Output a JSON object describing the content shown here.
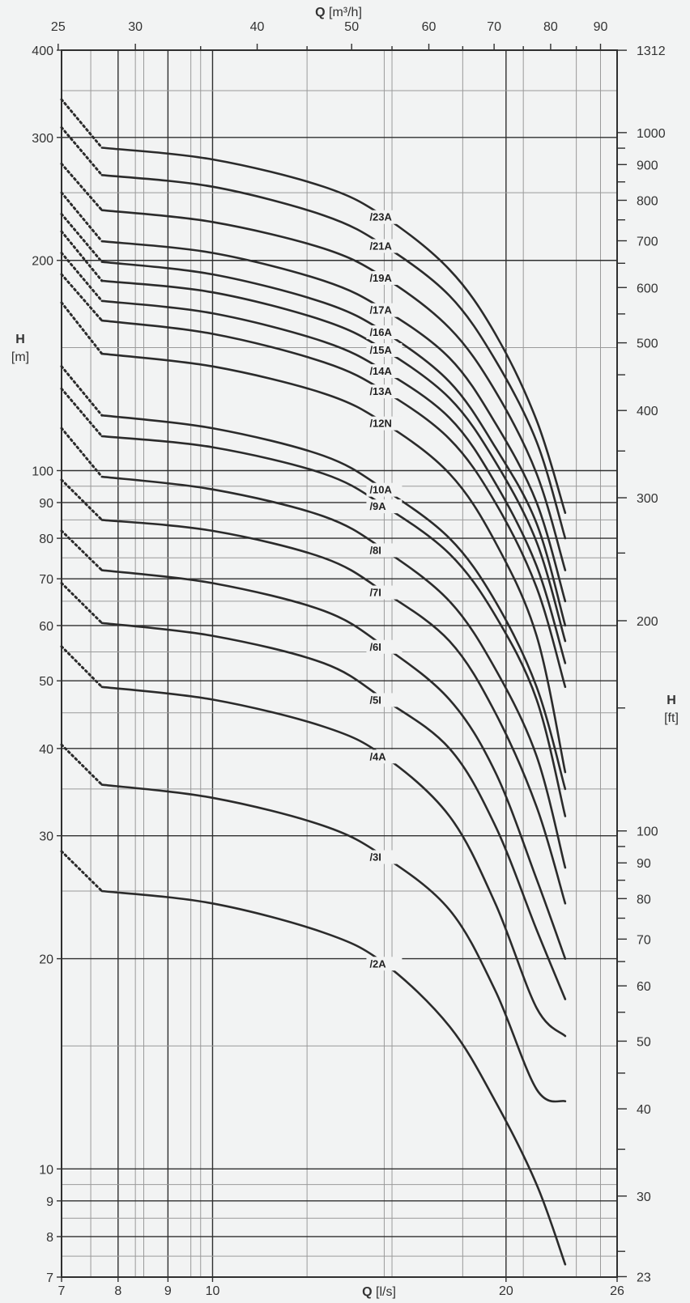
{
  "chart_data": {
    "type": "line",
    "x_scale": "log",
    "y_scale": "log",
    "xlim": [
      7,
      26
    ],
    "ylim": [
      7,
      400
    ],
    "top_axis": {
      "label_bold": "Q",
      "label_unit": "[m³/h]",
      "ticks": [
        "25",
        "30",
        "40",
        "50",
        "60",
        "70",
        "80",
        "90"
      ]
    },
    "bottom_axis": {
      "label_bold": "Q",
      "label_unit": "[l/s]",
      "ticks": [
        "7",
        "8",
        "9",
        "10",
        "20",
        "26"
      ]
    },
    "left_axis": {
      "label_bold": "H",
      "label_unit": "[m]",
      "ticks": [
        "7",
        "8",
        "9",
        "10",
        "20",
        "30",
        "40",
        "50",
        "60",
        "70",
        "80",
        "90",
        "100",
        "200",
        "300",
        "400"
      ]
    },
    "right_axis": {
      "label_bold": "H",
      "label_unit": "[ft]",
      "ticks": [
        "23",
        "30",
        "40",
        "50",
        "60",
        "70",
        "80",
        "90",
        "100",
        "200",
        "300",
        "400",
        "500",
        "600",
        "700",
        "800",
        "900",
        "1000",
        "1312"
      ]
    },
    "series": [
      {
        "name": "/23A",
        "points": [
          [
            7.0,
            340
          ],
          [
            7.7,
            290
          ],
          [
            10,
            279
          ],
          [
            13,
            255
          ],
          [
            15,
            231
          ],
          [
            17.5,
            194
          ],
          [
            19.5,
            157
          ],
          [
            21.5,
            118
          ],
          [
            23,
            87
          ]
        ]
      },
      {
        "name": "/21A",
        "points": [
          [
            7.0,
            310
          ],
          [
            7.7,
            265
          ],
          [
            10,
            255
          ],
          [
            13,
            232
          ],
          [
            15,
            210
          ],
          [
            17.5,
            178
          ],
          [
            19.5,
            144
          ],
          [
            21.5,
            110
          ],
          [
            23,
            80
          ]
        ]
      },
      {
        "name": "/19A",
        "points": [
          [
            7.0,
            275
          ],
          [
            7.7,
            236
          ],
          [
            10,
            227
          ],
          [
            13,
            208
          ],
          [
            15,
            189
          ],
          [
            17.5,
            160
          ],
          [
            19.5,
            130
          ],
          [
            21.5,
            99
          ],
          [
            23,
            72
          ]
        ]
      },
      {
        "name": "/17A",
        "points": [
          [
            7.0,
            250
          ],
          [
            7.7,
            213
          ],
          [
            10,
            205
          ],
          [
            13,
            187
          ],
          [
            15,
            170
          ],
          [
            17.5,
            145
          ],
          [
            19.5,
            117
          ],
          [
            21.5,
            90
          ],
          [
            23,
            65
          ]
        ]
      },
      {
        "name": "/16A",
        "points": [
          [
            7.0,
            233
          ],
          [
            7.7,
            199
          ],
          [
            10,
            191
          ],
          [
            13,
            174
          ],
          [
            15,
            158
          ],
          [
            17.5,
            134
          ],
          [
            19.5,
            108
          ],
          [
            21.5,
            84
          ],
          [
            23,
            60
          ]
        ]
      },
      {
        "name": "/15A",
        "points": [
          [
            7.0,
            220
          ],
          [
            7.7,
            187
          ],
          [
            10,
            180
          ],
          [
            13,
            164
          ],
          [
            15,
            149
          ],
          [
            17.5,
            127
          ],
          [
            19.5,
            103
          ],
          [
            21.5,
            79
          ],
          [
            23,
            57
          ]
        ]
      },
      {
        "name": "/14A",
        "points": [
          [
            7.0,
            205
          ],
          [
            7.7,
            175
          ],
          [
            10,
            168
          ],
          [
            13,
            153
          ],
          [
            15,
            139
          ],
          [
            17.5,
            119
          ],
          [
            19.5,
            96
          ],
          [
            21.5,
            73
          ],
          [
            23,
            53
          ]
        ]
      },
      {
        "name": "/13A",
        "points": [
          [
            7.0,
            191
          ],
          [
            7.7,
            164
          ],
          [
            10,
            157
          ],
          [
            13,
            143
          ],
          [
            15,
            130
          ],
          [
            17.5,
            111
          ],
          [
            19.5,
            90
          ],
          [
            21.5,
            68
          ],
          [
            23,
            49
          ]
        ]
      },
      {
        "name": "/12N",
        "points": [
          [
            7.0,
            174
          ],
          [
            7.7,
            147
          ],
          [
            10,
            141
          ],
          [
            13,
            129
          ],
          [
            15,
            117
          ],
          [
            17.5,
            99
          ],
          [
            19.5,
            79
          ],
          [
            21.5,
            58
          ],
          [
            23,
            37
          ]
        ]
      },
      {
        "name": "/10A",
        "points": [
          [
            7.0,
            141
          ],
          [
            7.7,
            120
          ],
          [
            10,
            115
          ],
          [
            13,
            105
          ],
          [
            15,
            94
          ],
          [
            17.5,
            80
          ],
          [
            19.5,
            65
          ],
          [
            21.5,
            49
          ],
          [
            23,
            35
          ]
        ]
      },
      {
        "name": "/9A",
        "points": [
          [
            7.0,
            131
          ],
          [
            7.7,
            112
          ],
          [
            10,
            108
          ],
          [
            13,
            99
          ],
          [
            15,
            89
          ],
          [
            17.5,
            76
          ],
          [
            19.5,
            62
          ],
          [
            21.5,
            47
          ],
          [
            23,
            32
          ]
        ]
      },
      {
        "name": "/8I",
        "points": [
          [
            7.0,
            115
          ],
          [
            7.7,
            98
          ],
          [
            10,
            94
          ],
          [
            13,
            86
          ],
          [
            15,
            77
          ],
          [
            17.5,
            65
          ],
          [
            19.5,
            52
          ],
          [
            21.5,
            39
          ],
          [
            23,
            27
          ]
        ]
      },
      {
        "name": "/7I",
        "points": [
          [
            7.0,
            97
          ],
          [
            7.7,
            85
          ],
          [
            10,
            82
          ],
          [
            13,
            75
          ],
          [
            15,
            67
          ],
          [
            17.5,
            57
          ],
          [
            19.5,
            45
          ],
          [
            21.5,
            33
          ],
          [
            23,
            24
          ]
        ]
      },
      {
        "name": "/6I",
        "points": [
          [
            7.0,
            82
          ],
          [
            7.7,
            72
          ],
          [
            10,
            69
          ],
          [
            13,
            63
          ],
          [
            15,
            56
          ],
          [
            17.5,
            47
          ],
          [
            19.5,
            37
          ],
          [
            21.5,
            26
          ],
          [
            23,
            20
          ]
        ]
      },
      {
        "name": "/5I",
        "points": [
          [
            7.0,
            69
          ],
          [
            7.7,
            60.5
          ],
          [
            10,
            58
          ],
          [
            13,
            53
          ],
          [
            15,
            47
          ],
          [
            17.5,
            40
          ],
          [
            19.5,
            31
          ],
          [
            21.5,
            22
          ],
          [
            23,
            17.5
          ]
        ]
      },
      {
        "name": "/4A",
        "points": [
          [
            7.0,
            56
          ],
          [
            7.7,
            49
          ],
          [
            10,
            47
          ],
          [
            13,
            43
          ],
          [
            15,
            39
          ],
          [
            17.5,
            32
          ],
          [
            19.5,
            24
          ],
          [
            21.5,
            17
          ],
          [
            23,
            15.5
          ]
        ]
      },
      {
        "name": "/3I",
        "points": [
          [
            7.0,
            40.5
          ],
          [
            7.7,
            35.5
          ],
          [
            10,
            34
          ],
          [
            13,
            31
          ],
          [
            15,
            28
          ],
          [
            17.5,
            23.5
          ],
          [
            19.5,
            18
          ],
          [
            21.5,
            13
          ],
          [
            23,
            12.5
          ]
        ]
      },
      {
        "name": "/2A",
        "points": [
          [
            7.0,
            28.5
          ],
          [
            7.7,
            25
          ],
          [
            10,
            24
          ],
          [
            13,
            21.8
          ],
          [
            15,
            19.7
          ],
          [
            17.5,
            16
          ],
          [
            19.5,
            12.5
          ],
          [
            21.5,
            9.5
          ],
          [
            23,
            7.3
          ]
        ]
      }
    ],
    "dotted_segment_x": [
      7.0,
      7.7
    ],
    "label_x": 15,
    "colors": {
      "background": "#f2f3f3",
      "line": "#2b2b2b",
      "grid_major": "#2f2f2f",
      "grid_minor": "#9a9a9a"
    }
  }
}
